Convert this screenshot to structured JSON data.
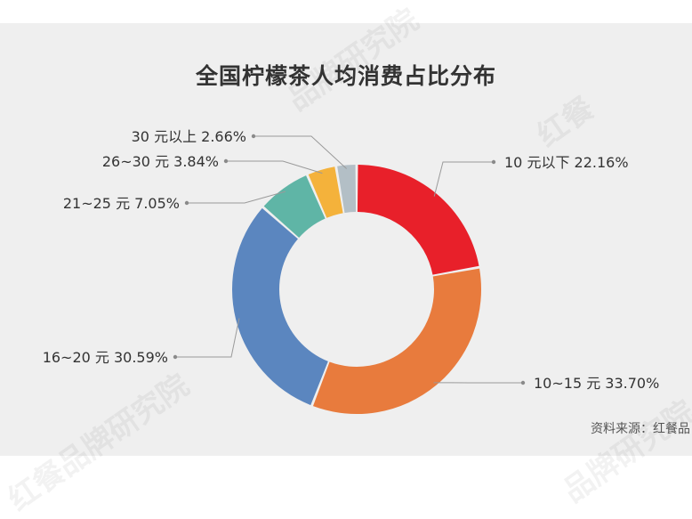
{
  "title": "全国柠檬茶人均消费占比分布",
  "source": "资料来源：红餐品",
  "watermarks": [
    "红餐品牌研究院",
    "品牌研究院",
    "红餐",
    "品牌研究院"
  ],
  "chart_data": {
    "type": "pie",
    "subtype": "donut",
    "title": "全国柠檬茶人均消费占比分布",
    "slices": [
      {
        "label": "10 元以下",
        "value": 22.16,
        "display": "22.16%",
        "color": "#e8202a"
      },
      {
        "label": "10~15 元",
        "value": 33.7,
        "display": "33.70%",
        "color": "#e87b3d"
      },
      {
        "label": "16~20 元",
        "value": 30.59,
        "display": "30.59%",
        "color": "#5b86bf"
      },
      {
        "label": "21~25 元",
        "value": 7.05,
        "display": "7.05%",
        "color": "#5fb5a6"
      },
      {
        "label": "26~30 元",
        "value": 3.84,
        "display": "3.84%",
        "color": "#f4b23b"
      },
      {
        "label": "30 元以上",
        "value": 2.66,
        "display": "2.66%",
        "color": "#b3bfc6"
      }
    ]
  }
}
